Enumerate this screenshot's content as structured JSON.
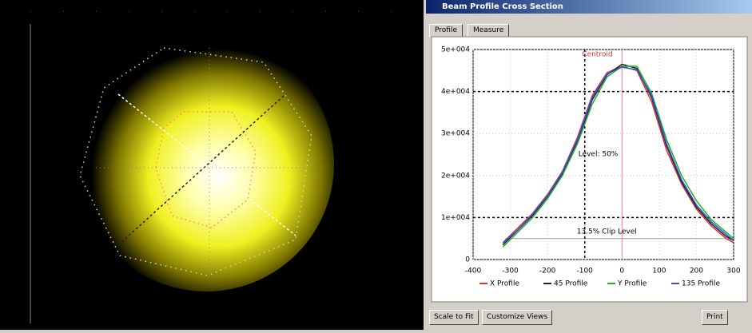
{
  "window": {
    "title": "Beam Profile Cross Section",
    "tabs": [
      "Profile",
      "Measure"
    ],
    "buttons": [
      "Scale to Fit",
      "Customize Views",
      "Print"
    ]
  },
  "chart_data": {
    "type": "line",
    "annotations": [
      "Centroid",
      "Level: 50%",
      "13.5% Clip Level"
    ],
    "xlim": [
      -400,
      300
    ],
    "xticks": [
      -400,
      -300,
      -200,
      -100,
      0,
      100,
      200,
      300
    ],
    "ylim": [
      0,
      50000
    ],
    "yticks": [
      0,
      {
        "value": 10000,
        "label": "1e+004"
      },
      {
        "value": 20000,
        "label": "2e+004"
      },
      {
        "value": 30000,
        "label": "3e+004"
      },
      {
        "value": 40000,
        "label": "4e+004"
      },
      {
        "value": 50000,
        "label": "5e+004"
      }
    ],
    "grid": true,
    "level_lines": [
      10000,
      40000
    ],
    "clip_line": 5000,
    "centroid_x": 0,
    "cursor_x": -100,
    "x": [
      -320,
      -280,
      -240,
      -200,
      -160,
      -120,
      -80,
      -40,
      0,
      40,
      80,
      120,
      160,
      200,
      240,
      280,
      300
    ],
    "series": [
      {
        "name": "X Profile",
        "color": "#e03030",
        "values": [
          4000,
          7500,
          11000,
          15500,
          21000,
          29000,
          39000,
          44500,
          46000,
          45000,
          37500,
          26000,
          18000,
          12000,
          8000,
          5000,
          4000
        ]
      },
      {
        "name": "45 Profile",
        "color": "#202020",
        "values": [
          3500,
          7000,
          10500,
          15000,
          20500,
          28000,
          38000,
          44000,
          46500,
          45500,
          38500,
          27000,
          18500,
          12500,
          8500,
          5500,
          4500
        ]
      },
      {
        "name": "Y Profile",
        "color": "#20b020",
        "values": [
          3000,
          6500,
          10000,
          14500,
          20000,
          27500,
          37000,
          43500,
          46000,
          46000,
          39500,
          28500,
          20000,
          14000,
          9500,
          6500,
          5000
        ]
      },
      {
        "name": "135 Profile",
        "color": "#3050e0",
        "values": [
          4000,
          7000,
          10800,
          15200,
          20800,
          28500,
          38500,
          44200,
          45800,
          45200,
          39000,
          27500,
          19000,
          13000,
          9000,
          6000,
          4500
        ]
      }
    ]
  }
}
